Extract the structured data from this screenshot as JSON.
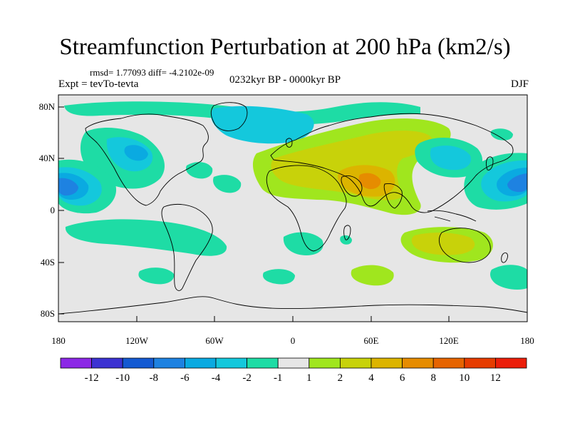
{
  "title": "Streamfunction Perturbation at 200 hPa (km2/s)",
  "stats_line": "rmsd= 1.77093 diff= -4.2102e-09",
  "experiment_label": "Expt = tevTo-tevta",
  "period_label": "0232kyr BP - 0000kyr BP",
  "season_label": "DJF",
  "y_tick_labels": [
    "80N",
    "40N",
    "0",
    "40S",
    "80S"
  ],
  "x_tick_labels": [
    "180",
    "120W",
    "60W",
    "0",
    "60E",
    "120E",
    "180"
  ],
  "colorbar": {
    "colors": [
      "#8c28e6",
      "#3c32d2",
      "#145ad2",
      "#1e82e1",
      "#0aaae1",
      "#14c8dc",
      "#1edca5",
      "#e6e6e6",
      "#a0e61e",
      "#c8d20a",
      "#dcb400",
      "#e68c00",
      "#e66400",
      "#e63c00",
      "#eb1e0a"
    ],
    "labels": [
      "-12",
      "-10",
      "-8",
      "-6",
      "-4",
      "-2",
      "-1",
      "1",
      "2",
      "4",
      "6",
      "8",
      "10",
      "12"
    ]
  }
}
